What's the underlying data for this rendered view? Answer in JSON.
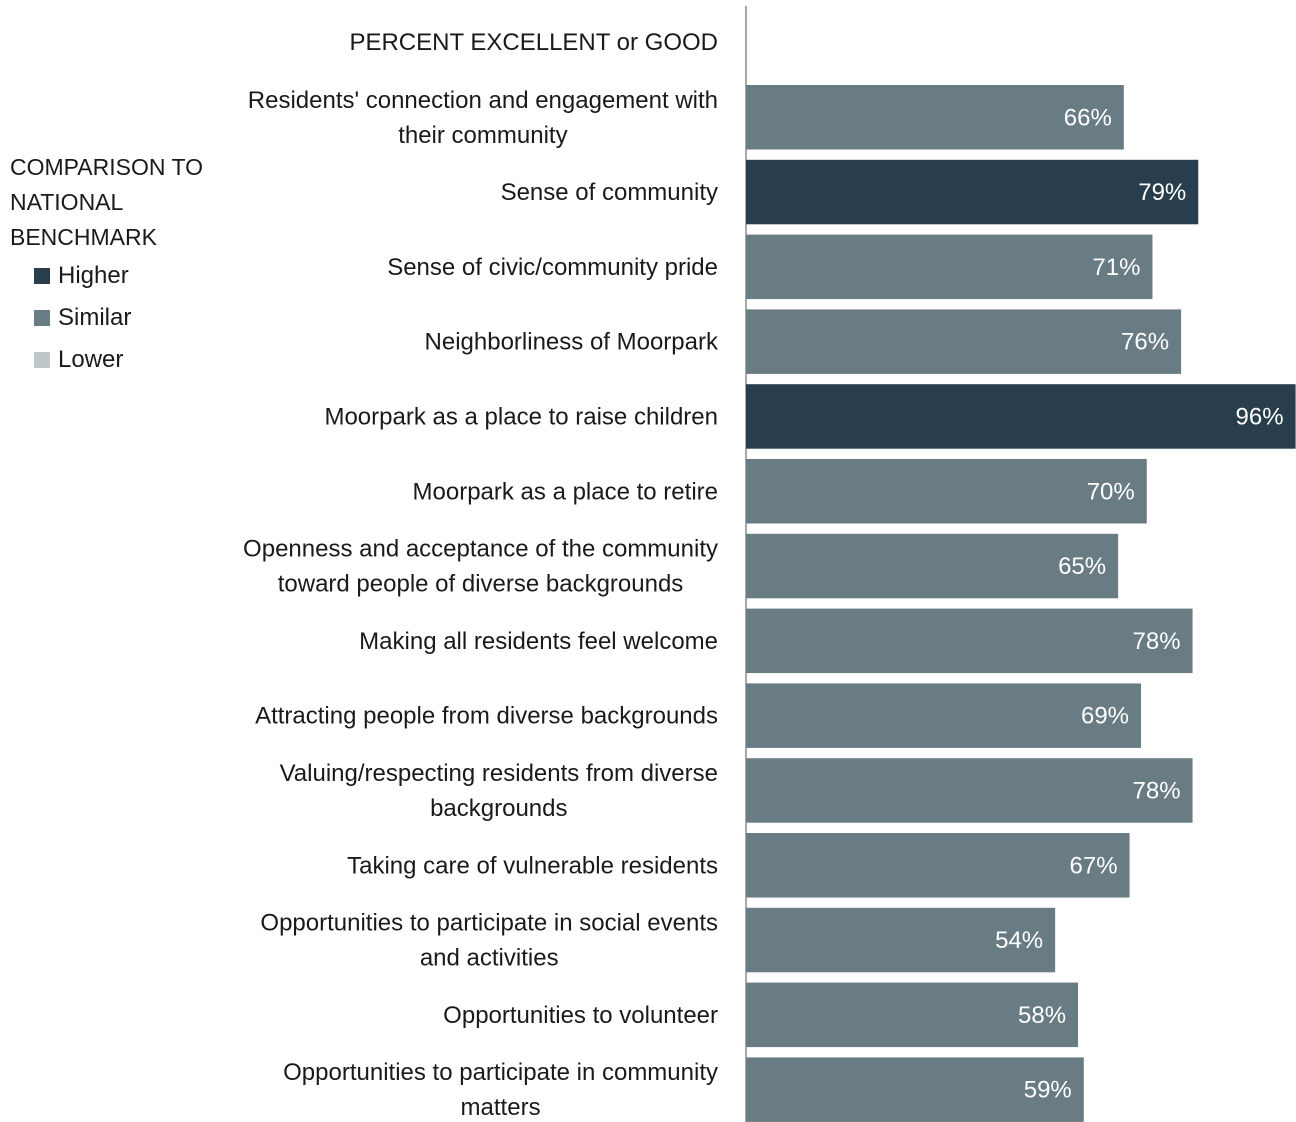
{
  "chart_data": {
    "type": "bar",
    "orientation": "horizontal",
    "title": "PERCENT EXCELLENT or GOOD",
    "xlim": [
      0,
      100
    ],
    "grid": false,
    "categories": [
      [
        "Residents' connection and engagement with",
        "their community"
      ],
      [
        "Sense of community"
      ],
      [
        "Sense of civic/community pride"
      ],
      [
        "Neighborliness of Moorpark"
      ],
      [
        "Moorpark as a place to raise children"
      ],
      [
        "Moorpark as a place to retire"
      ],
      [
        "Openness and acceptance of the community",
        "toward people of diverse backgrounds"
      ],
      [
        "Making all residents feel welcome"
      ],
      [
        "Attracting people from diverse backgrounds"
      ],
      [
        "Valuing/respecting residents from diverse",
        "backgrounds"
      ],
      [
        "Taking care of vulnerable residents"
      ],
      [
        "Opportunities to participate in social events",
        "and activities"
      ],
      [
        "Opportunities to volunteer"
      ],
      [
        "Opportunities to participate in community",
        "matters"
      ]
    ],
    "values": [
      66,
      79,
      71,
      76,
      96,
      70,
      65,
      78,
      69,
      78,
      67,
      54,
      58,
      59
    ],
    "value_labels": [
      "66%",
      "79%",
      "71%",
      "76%",
      "96%",
      "70%",
      "65%",
      "78%",
      "69%",
      "78%",
      "67%",
      "54%",
      "58%",
      "59%"
    ],
    "comparison": [
      "Similar",
      "Higher",
      "Similar",
      "Similar",
      "Higher",
      "Similar",
      "Similar",
      "Similar",
      "Similar",
      "Similar",
      "Similar",
      "Similar",
      "Similar",
      "Similar"
    ],
    "legend": {
      "title": "COMPARISON TO NATIONAL BENCHMARK",
      "placement": "left",
      "items": [
        {
          "label": "Higher",
          "color": "#283e4d"
        },
        {
          "label": "Similar",
          "color": "#6a7c83"
        },
        {
          "label": "Lower",
          "color": "#c0c7cb"
        }
      ]
    }
  }
}
